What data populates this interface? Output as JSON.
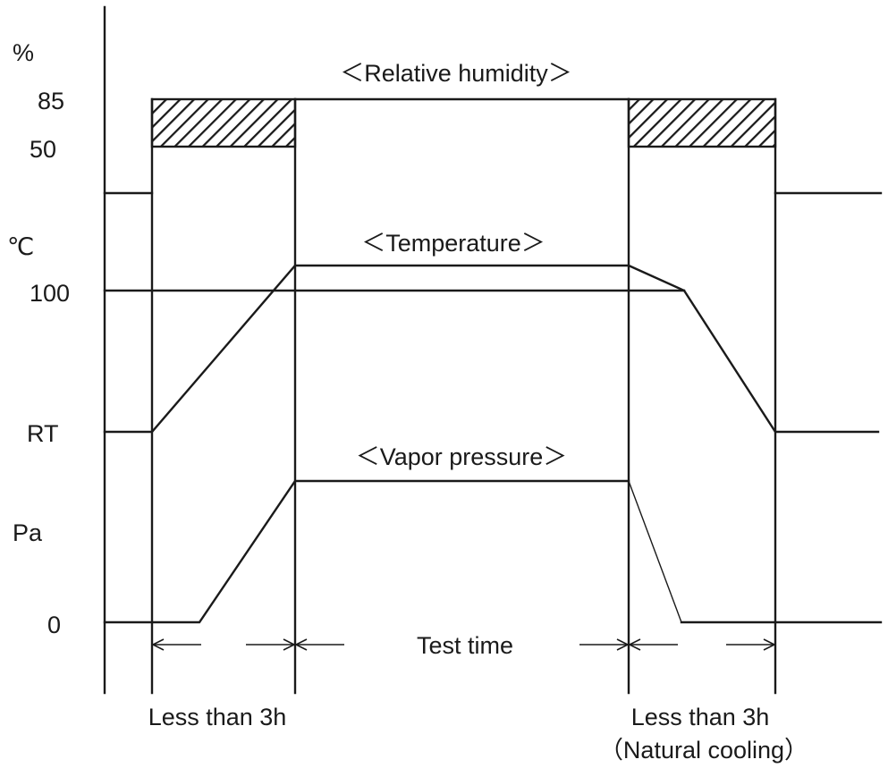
{
  "labels": {
    "percent_unit": "%",
    "rh_85": "85",
    "rh_50": "50",
    "celsius_unit": "℃",
    "temp_100": "100",
    "temp_rt": "RT",
    "pressure_unit": "Pa",
    "pressure_0": "0"
  },
  "titles": {
    "relative_humidity": "＜Relative humidity＞",
    "temperature": "＜Temperature＞",
    "vapor_pressure": "＜Vapor pressure＞"
  },
  "timeline": {
    "ramp_up": "Less than 3h",
    "test_time": "Test time",
    "ramp_down": "Less than 3h",
    "ramp_down_note": "（Natural cooling）"
  }
}
